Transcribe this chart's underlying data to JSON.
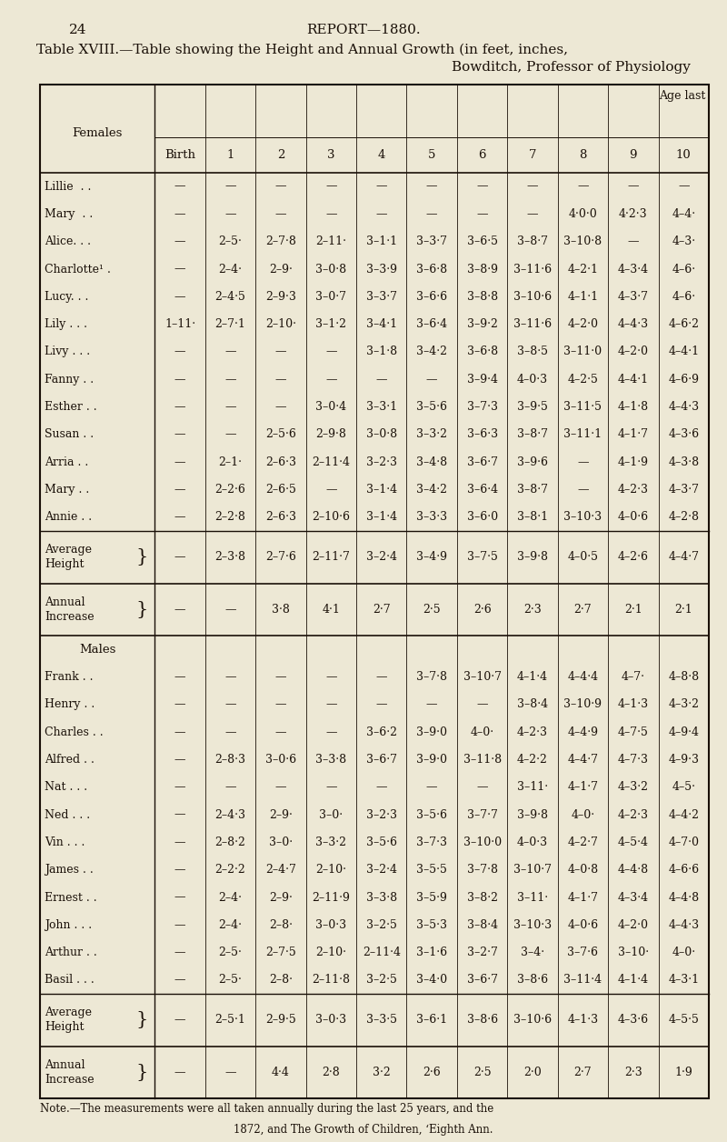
{
  "page_num": "24",
  "report_title": "REPORT—1880.",
  "table_title_line1": "Table XVIII.—Table showing the Height and Annual Growth (in feet, inches,",
  "table_title_line2": "Bowditch, Professor of Physiology",
  "bg_color": "#ede8d5",
  "text_color": "#1a1008",
  "col_headers": [
    "Birth",
    "1",
    "2",
    "3",
    "4",
    "5",
    "6",
    "7",
    "8",
    "9",
    "10"
  ],
  "age_last_label": "Age last",
  "females_label": "Females",
  "males_label": "Males",
  "female_rows": [
    [
      "Lillie  . .",
      "—",
      "—",
      "—",
      "—",
      "—",
      "—",
      "—",
      "—",
      "—",
      "—",
      "—"
    ],
    [
      "Mary  . .",
      "—",
      "—",
      "—",
      "—",
      "—",
      "—",
      "—",
      "—",
      "4·0·0",
      "4·2·3",
      "4–4·"
    ],
    [
      "Alice. . .",
      "—",
      "2–5·",
      "2–7·8",
      "2–11·",
      "3–1·1",
      "3–3·7",
      "3–6·5",
      "3–8·7",
      "3–10·8",
      "—",
      "4–3·"
    ],
    [
      "Charlotte¹ .",
      "—",
      "2–4·",
      "2–9·",
      "3–0·8",
      "3–3·9",
      "3–6·8",
      "3–8·9",
      "3–11·6",
      "4–2·1",
      "4–3·4",
      "4–6·"
    ],
    [
      "Lucy. . .",
      "—",
      "2–4·5",
      "2–9·3",
      "3–0·7",
      "3–3·7",
      "3–6·6",
      "3–8·8",
      "3–10·6",
      "4–1·1",
      "4–3·7",
      "4–6·"
    ],
    [
      "Lily . . .",
      "1–11·",
      "2–7·1",
      "2–10·",
      "3–1·2",
      "3–4·1",
      "3–6·4",
      "3–9·2",
      "3–11·6",
      "4–2·0",
      "4–4·3",
      "4–6·2"
    ],
    [
      "Livy . . .",
      "—",
      "—",
      "—",
      "—",
      "3–1·8",
      "3–4·2",
      "3–6·8",
      "3–8·5",
      "3–11·0",
      "4–2·0",
      "4–4·1"
    ],
    [
      "Fanny . .",
      "—",
      "—",
      "—",
      "—",
      "—",
      "—",
      "3–9·4",
      "4–0·3",
      "4–2·5",
      "4–4·1",
      "4–6·9"
    ],
    [
      "Esther . .",
      "—",
      "—",
      "—",
      "3–0·4",
      "3–3·1",
      "3–5·6",
      "3–7·3",
      "3–9·5",
      "3–11·5",
      "4–1·8",
      "4–4·3"
    ],
    [
      "Susan . .",
      "—",
      "—",
      "2–5·6",
      "2–9·8",
      "3–0·8",
      "3–3·2",
      "3–6·3",
      "3–8·7",
      "3–11·1",
      "4–1·7",
      "4–3·6"
    ],
    [
      "Arria . .",
      "—",
      "2–1·",
      "2–6·3",
      "2–11·4",
      "3–2·3",
      "3–4·8",
      "3–6·7",
      "3–9·6",
      "—",
      "4–1·9",
      "4–3·8"
    ],
    [
      "Mary . .",
      "—",
      "2–2·6",
      "2–6·5",
      "—",
      "3–1·4",
      "3–4·2",
      "3–6·4",
      "3–8·7",
      "—",
      "4–2·3",
      "4–3·7"
    ],
    [
      "Annie . .",
      "—",
      "2–2·8",
      "2–6·3",
      "2–10·6",
      "3–1·4",
      "3–3·3",
      "3–6·0",
      "3–8·1",
      "3–10·3",
      "4–0·6",
      "4–2·8"
    ]
  ],
  "female_avg_height": [
    "—",
    "2–3·8",
    "2–7·6",
    "2–11·7",
    "3–2·4",
    "3–4·9",
    "3–7·5",
    "3–9·8",
    "4–0·5",
    "4–2·6",
    "4–4·7"
  ],
  "female_annual_inc": [
    "—",
    "—",
    "3·8",
    "4·1",
    "2·7",
    "2·5",
    "2·6",
    "2·3",
    "2·7",
    "2·1",
    "2·1"
  ],
  "male_rows": [
    [
      "Frank . .",
      "—",
      "—",
      "—",
      "—",
      "—",
      "3–7·8",
      "3–10·7",
      "4–1·4",
      "4–4·4",
      "4–7·",
      "4–8·8"
    ],
    [
      "Henry . .",
      "—",
      "—",
      "—",
      "—",
      "—",
      "—",
      "—",
      "3–8·4",
      "3–10·9",
      "4–1·3",
      "4–3·2"
    ],
    [
      "Charles . .",
      "—",
      "—",
      "—",
      "—",
      "3–6·2",
      "3–9·0",
      "4–0·",
      "4–2·3",
      "4–4·9",
      "4–7·5",
      "4–9·4"
    ],
    [
      "Alfred . .",
      "—",
      "2–8·3",
      "3–0·6",
      "3–3·8",
      "3–6·7",
      "3–9·0",
      "3–11·8",
      "4–2·2",
      "4–4·7",
      "4–7·3",
      "4–9·3"
    ],
    [
      "Nat . . .",
      "—",
      "—",
      "—",
      "—",
      "—",
      "—",
      "—",
      "3–11·",
      "4–1·7",
      "4–3·2",
      "4–5·"
    ],
    [
      "Ned . . .",
      "—",
      "2–4·3",
      "2–9·",
      "3–0·",
      "3–2·3",
      "3–5·6",
      "3–7·7",
      "3–9·8",
      "4–0·",
      "4–2·3",
      "4–4·2"
    ],
    [
      "Vin . . .",
      "—",
      "2–8·2",
      "3–0·",
      "3–3·2",
      "3–5·6",
      "3–7·3",
      "3–10·0",
      "4–0·3",
      "4–2·7",
      "4–5·4",
      "4–7·0"
    ],
    [
      "James . .",
      "—",
      "2–2·2",
      "2–4·7",
      "2–10·",
      "3–2·4",
      "3–5·5",
      "3–7·8",
      "3–10·7",
      "4–0·8",
      "4–4·8",
      "4–6·6"
    ],
    [
      "Ernest . .",
      "—",
      "2–4·",
      "2–9·",
      "2–11·9",
      "3–3·8",
      "3–5·9",
      "3–8·2",
      "3–11·",
      "4–1·7",
      "4–3·4",
      "4–4·8"
    ],
    [
      "John . . .",
      "—",
      "2–4·",
      "2–8·",
      "3–0·3",
      "3–2·5",
      "3–5·3",
      "3–8·4",
      "3–10·3",
      "4–0·6",
      "4–2·0",
      "4–4·3"
    ],
    [
      "Arthur . .",
      "—",
      "2–5·",
      "2–7·5",
      "2–10·",
      "2–11·4",
      "3–1·6",
      "3–2·7",
      "3–4·",
      "3–7·6",
      "3–10·",
      "4–0·"
    ],
    [
      "Basil . . .",
      "—",
      "2–5·",
      "2–8·",
      "2–11·8",
      "3–2·5",
      "3–4·0",
      "3–6·7",
      "3–8·6",
      "3–11·4",
      "4–1·4",
      "4–3·1"
    ]
  ],
  "male_avg_height": [
    "—",
    "2–5·1",
    "2–9·5",
    "3–0·3",
    "3–3·5",
    "3–6·1",
    "3–8·6",
    "3–10·6",
    "4–1·3",
    "4–3·6",
    "4–5·5"
  ],
  "male_annual_inc": [
    "—",
    "—",
    "4·4",
    "2·8",
    "3·2",
    "2·6",
    "2·5",
    "2·0",
    "2·7",
    "2·3",
    "1·9"
  ],
  "note_line1": "Note.—The measurements were all taken annually during the last 25 years, and the",
  "note_line2": "1872, and The Growth of Children, ‘Eighth Ann."
}
